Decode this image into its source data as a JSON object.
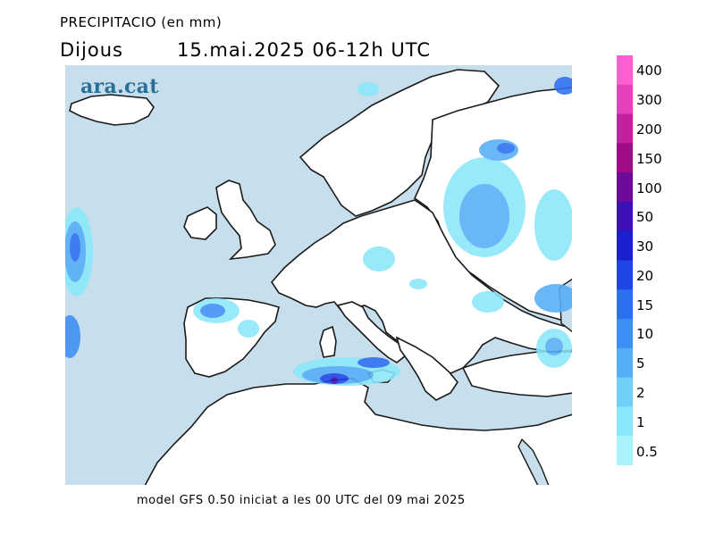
{
  "header": {
    "title": "PRECIPITACIO (en mm)",
    "day": "Dijous",
    "date_range": "15.mai.2025 06-12h UTC"
  },
  "brand": "ara.cat",
  "footer": "model GFS 0.50 iniciat a les 00 UTC del 09 mai 2025",
  "colors": {
    "sea": "#c7dfec",
    "land": "#ffffff",
    "coast": "#1a1a1a"
  },
  "legend": {
    "levels": [
      {
        "label": "400",
        "color": "#ff5fd1"
      },
      {
        "label": "300",
        "color": "#e83fbe"
      },
      {
        "label": "200",
        "color": "#c31f9f"
      },
      {
        "label": "150",
        "color": "#a00c85"
      },
      {
        "label": "100",
        "color": "#6e0a9c"
      },
      {
        "label": "50",
        "color": "#3b10b8"
      },
      {
        "label": "30",
        "color": "#1a1fd0"
      },
      {
        "label": "20",
        "color": "#1f45e6"
      },
      {
        "label": "15",
        "color": "#2c6ff0"
      },
      {
        "label": "10",
        "color": "#3d8ef5"
      },
      {
        "label": "5",
        "color": "#55aef7"
      },
      {
        "label": "2",
        "color": "#6fd0f8"
      },
      {
        "label": "1",
        "color": "#8ae7fa"
      },
      {
        "label": "0.5",
        "color": "#a9f3fc"
      }
    ]
  }
}
